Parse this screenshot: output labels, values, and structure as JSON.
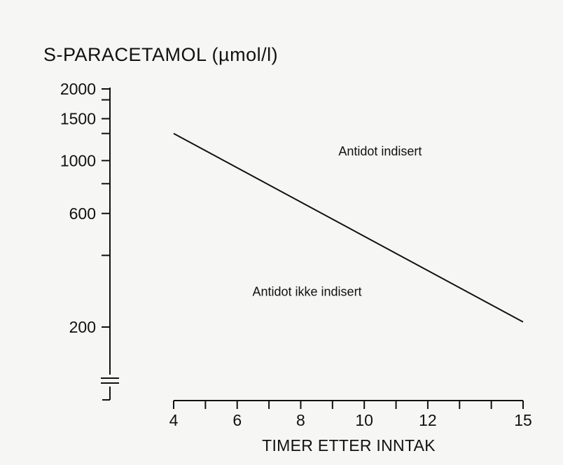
{
  "chart_data": {
    "type": "line",
    "title": "S-PARACETAMOL (µmol/l)",
    "xlabel": "TIMER ETTER INNTAK",
    "ylabel": "",
    "x_scale": "linear",
    "y_scale": "log",
    "xlim": [
      4,
      15
    ],
    "ylim": [
      100,
      2000
    ],
    "x_ticks": [
      {
        "value": 4,
        "label": "4"
      },
      {
        "value": 5,
        "label": ""
      },
      {
        "value": 6,
        "label": "6"
      },
      {
        "value": 7,
        "label": ""
      },
      {
        "value": 8,
        "label": "8"
      },
      {
        "value": 9,
        "label": ""
      },
      {
        "value": 10,
        "label": "10"
      },
      {
        "value": 11,
        "label": ""
      },
      {
        "value": 12,
        "label": "12"
      },
      {
        "value": 13,
        "label": ""
      },
      {
        "value": 14,
        "label": ""
      },
      {
        "value": 15,
        "label": "15"
      }
    ],
    "y_ticks": [
      {
        "value": 2000,
        "label": "2000"
      },
      {
        "value": 1800,
        "label": ""
      },
      {
        "value": 1500,
        "label": "1500"
      },
      {
        "value": 1300,
        "label": ""
      },
      {
        "value": 1000,
        "label": "1000"
      },
      {
        "value": 800,
        "label": ""
      },
      {
        "value": 600,
        "label": "600"
      },
      {
        "value": 400,
        "label": ""
      },
      {
        "value": 200,
        "label": "200"
      }
    ],
    "y_axis_break": true,
    "series": [
      {
        "x": [
          4,
          15
        ],
        "y": [
          1300,
          210
        ]
      }
    ],
    "annotations": [
      {
        "text": "Antidot indisert",
        "x": 10.5,
        "y": 1050
      },
      {
        "text": "Antidot ikke indisert",
        "x": 8.2,
        "y": 270
      }
    ],
    "grid": false,
    "legend": "none"
  }
}
